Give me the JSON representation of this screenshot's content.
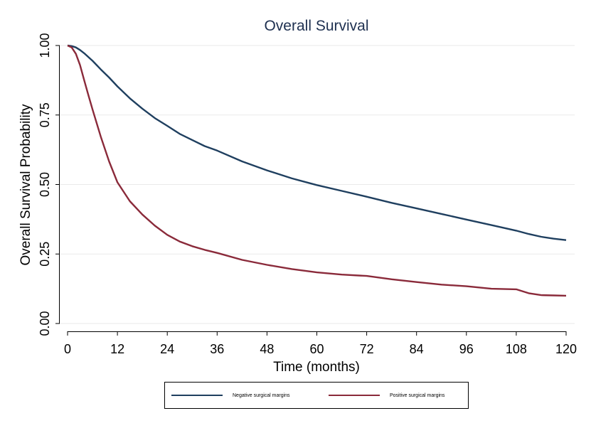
{
  "chart_data": {
    "type": "line",
    "title": "Overall Survival",
    "xlabel": "Time (months)",
    "ylabel": "Overall Survival Probability",
    "xlim": [
      0,
      120
    ],
    "ylim": [
      0,
      1
    ],
    "x_ticks": [
      "0",
      "12",
      "24",
      "36",
      "48",
      "60",
      "72",
      "84",
      "96",
      "108",
      "120"
    ],
    "y_ticks": [
      "0.00",
      "0.25",
      "0.50",
      "0.75",
      "1.00"
    ],
    "grid": true,
    "legend_position": "bottom",
    "series": [
      {
        "name": "Negative surgical margins",
        "color": "#1f3f5f",
        "x": [
          0,
          1,
          2,
          3,
          4,
          6,
          8,
          10,
          12,
          15,
          18,
          21,
          24,
          27,
          30,
          33,
          36,
          42,
          48,
          54,
          60,
          66,
          72,
          78,
          84,
          90,
          96,
          102,
          108,
          111,
          114,
          117,
          120
        ],
        "y": [
          1.0,
          0.998,
          0.993,
          0.984,
          0.972,
          0.945,
          0.914,
          0.885,
          0.853,
          0.81,
          0.773,
          0.739,
          0.711,
          0.682,
          0.66,
          0.638,
          0.622,
          0.583,
          0.551,
          0.522,
          0.498,
          0.477,
          0.456,
          0.434,
          0.414,
          0.394,
          0.374,
          0.354,
          0.334,
          0.322,
          0.312,
          0.305,
          0.3
        ]
      },
      {
        "name": "Positive surgical margins",
        "color": "#8a2a3a",
        "x": [
          0,
          1,
          2,
          3,
          4,
          5,
          6,
          8,
          10,
          12,
          15,
          18,
          21,
          24,
          27,
          30,
          33,
          36,
          42,
          48,
          54,
          60,
          66,
          72,
          78,
          84,
          90,
          96,
          102,
          108,
          111,
          114,
          117,
          120
        ],
        "y": [
          1.0,
          0.993,
          0.97,
          0.93,
          0.875,
          0.822,
          0.77,
          0.672,
          0.583,
          0.508,
          0.44,
          0.392,
          0.352,
          0.319,
          0.295,
          0.278,
          0.265,
          0.254,
          0.229,
          0.211,
          0.196,
          0.184,
          0.176,
          0.171,
          0.159,
          0.149,
          0.14,
          0.134,
          0.125,
          0.123,
          0.109,
          0.102,
          0.101,
          0.1
        ]
      }
    ]
  }
}
